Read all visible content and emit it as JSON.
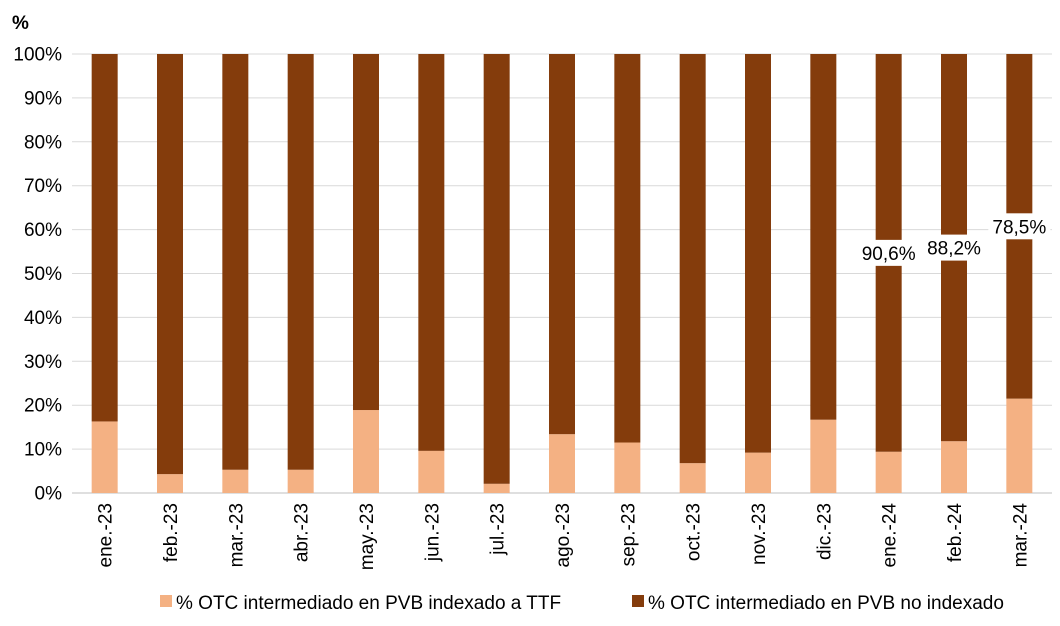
{
  "chart_data": {
    "type": "bar",
    "stacked": true,
    "unit_label": "%",
    "categories": [
      "ene.-23",
      "feb.-23",
      "mar.-23",
      "abr.-23",
      "may.-23",
      "jun.-23",
      "jul.-23",
      "ago.-23",
      "sep.-23",
      "oct.-23",
      "nov.-23",
      "dic.-23",
      "ene.-24",
      "feb.-24",
      "mar.-24"
    ],
    "series": [
      {
        "name": "% OTC intermediado en PVB indexado a TTF",
        "color": "#f4b183",
        "values": [
          16.3,
          4.3,
          5.3,
          5.3,
          18.9,
          9.6,
          2.1,
          13.4,
          11.5,
          6.8,
          9.2,
          16.7,
          9.4,
          11.8,
          21.5
        ]
      },
      {
        "name": "% OTC intermediado en PVB no indexado",
        "color": "#843c0c",
        "values": [
          83.7,
          95.7,
          94.7,
          94.7,
          81.1,
          90.4,
          97.9,
          86.6,
          88.5,
          93.2,
          90.8,
          83.3,
          90.6,
          88.2,
          78.5
        ]
      }
    ],
    "ylim": [
      0,
      100
    ],
    "yticks": [
      "0%",
      "10%",
      "20%",
      "30%",
      "40%",
      "50%",
      "60%",
      "70%",
      "80%",
      "90%",
      "100%"
    ],
    "grid": true,
    "legend_position": "bottom",
    "annotations": [
      {
        "category": "ene.-24",
        "series": 1,
        "text": "90,6%"
      },
      {
        "category": "feb.-24",
        "series": 1,
        "text": "88,2%"
      },
      {
        "category": "mar.-24",
        "series": 1,
        "text": "78,5%"
      }
    ]
  }
}
